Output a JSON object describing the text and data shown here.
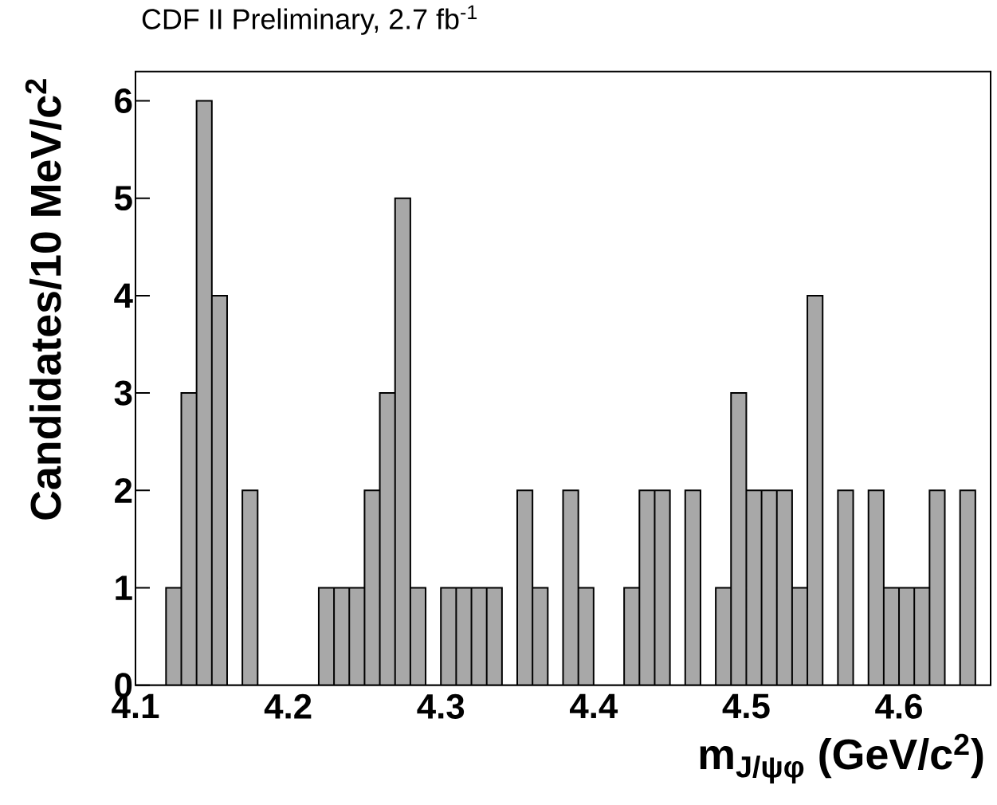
{
  "chart_data": {
    "type": "histogram",
    "title": "CDF II Preliminary, 2.7 fb$^{-1}$",
    "xlabel": "m$_{J/ψφ}$  (GeV/c$^{2}$)",
    "ylabel": "Candidates/10 MeV/c$^{2}$",
    "bins": [
      4.1,
      4.11,
      4.12,
      4.13,
      4.14,
      4.15,
      4.16,
      4.17,
      4.18,
      4.19,
      4.2,
      4.21,
      4.22,
      4.23,
      4.24,
      4.25,
      4.26,
      4.27,
      4.28,
      4.29,
      4.3,
      4.31,
      4.32,
      4.33,
      4.34,
      4.35,
      4.36,
      4.37,
      4.38,
      4.39,
      4.4,
      4.41,
      4.42,
      4.43,
      4.44,
      4.45,
      4.46,
      4.47,
      4.48,
      4.49,
      4.5,
      4.51,
      4.52,
      4.53,
      4.54,
      4.55,
      4.56,
      4.57,
      4.58,
      4.59,
      4.6,
      4.61,
      4.62,
      4.63,
      4.64,
      4.65,
      4.66
    ],
    "values": [
      0,
      0,
      1,
      3,
      6,
      4,
      0,
      2,
      0,
      0,
      0,
      0,
      1,
      1,
      1,
      2,
      3,
      5,
      1,
      0,
      1,
      1,
      1,
      1,
      0,
      2,
      1,
      0,
      2,
      1,
      0,
      0,
      1,
      2,
      2,
      0,
      2,
      0,
      1,
      3,
      2,
      2,
      2,
      1,
      4,
      0,
      2,
      0,
      2,
      1,
      1,
      1,
      2,
      0,
      2,
      0
    ],
    "color": "#a8a8a8",
    "xlim": [
      4.1,
      4.66
    ],
    "ylim": [
      0,
      6.3
    ],
    "xticks": [
      4.1,
      4.2,
      4.3,
      4.4,
      4.5,
      4.6
    ],
    "yticks": [
      0,
      1,
      2,
      3,
      4,
      5,
      6
    ]
  }
}
